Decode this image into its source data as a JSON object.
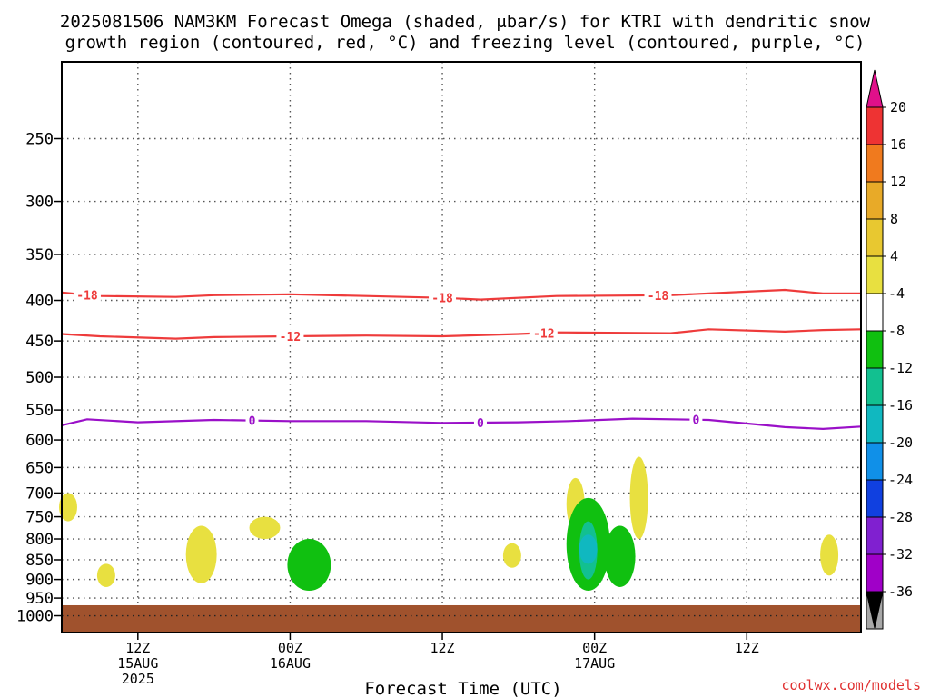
{
  "chart_data": {
    "type": "heatmap",
    "title_line1": "2025081506 NAM3KM Forecast Omega (shaded, μbar/s) for KTRI with dendritic snow",
    "title_line2": "growth region (contoured, red, °C) and freezing level (contoured, purple, °C)",
    "xlabel": "Forecast Time (UTC)",
    "ylabel": "",
    "y_scale": "log",
    "ylim": [
      1050,
      200
    ],
    "y_ticks": [
      250,
      300,
      350,
      400,
      450,
      500,
      550,
      600,
      650,
      700,
      750,
      800,
      850,
      900,
      950,
      1000
    ],
    "xlim": [
      "2025-08-15 06Z",
      "2025-08-17 21Z"
    ],
    "x_ticks": [
      {
        "time": "2025-08-15 12Z",
        "lines": [
          "12Z",
          "15AUG",
          "2025"
        ]
      },
      {
        "time": "2025-08-16 00Z",
        "lines": [
          "00Z",
          "16AUG"
        ]
      },
      {
        "time": "2025-08-16 12Z",
        "lines": [
          "12Z"
        ]
      },
      {
        "time": "2025-08-17 00Z",
        "lines": [
          "00Z",
          "17AUG"
        ]
      },
      {
        "time": "2025-08-17 12Z",
        "lines": [
          "12Z"
        ]
      }
    ],
    "grid": true,
    "colorbar": {
      "position": "right",
      "levels": [
        20,
        16,
        12,
        8,
        4,
        -4,
        -8,
        -12,
        -16,
        -20,
        -24,
        -28,
        -32,
        -36
      ],
      "colors": [
        "#ee3333",
        "#f07a1e",
        "#e8aa28",
        "#e8c830",
        "#e8e040",
        "#ffffff",
        "#10c010",
        "#12c090",
        "#10b8c0",
        "#1090e8",
        "#1040e0",
        "#8020d0",
        "#a000c8",
        "#a8a8a8"
      ],
      "top_arrow_color": "#e0108a",
      "bottom_arrow_color": "#000000"
    },
    "contours": [
      {
        "kind": "dendritic",
        "level": -18,
        "color": "#ee3b3b",
        "points": [
          [
            "2025-08-15 06Z",
            391
          ],
          [
            "2025-08-15 09Z",
            395
          ],
          [
            "2025-08-15 15Z",
            396
          ],
          [
            "2025-08-15 18Z",
            394
          ],
          [
            "2025-08-16 00Z",
            393
          ],
          [
            "2025-08-16 06Z",
            395
          ],
          [
            "2025-08-16 12Z",
            397
          ],
          [
            "2025-08-16 15Z",
            399
          ],
          [
            "2025-08-16 21Z",
            395
          ],
          [
            "2025-08-17 06Z",
            394
          ],
          [
            "2025-08-17 12Z",
            390
          ],
          [
            "2025-08-17 15Z",
            388
          ],
          [
            "2025-08-17 18Z",
            392
          ],
          [
            "2025-08-17 21Z",
            392
          ]
        ],
        "labels": [
          [
            "2025-08-15 08Z",
            "-18"
          ],
          [
            "2025-08-16 12Z",
            "-18"
          ],
          [
            "2025-08-17 05Z",
            "-18"
          ]
        ]
      },
      {
        "kind": "dendritic",
        "level": -12,
        "color": "#ee3b3b",
        "points": [
          [
            "2025-08-15 06Z",
            441
          ],
          [
            "2025-08-15 09Z",
            444
          ],
          [
            "2025-08-15 15Z",
            447
          ],
          [
            "2025-08-15 18Z",
            445
          ],
          [
            "2025-08-16 00Z",
            444
          ],
          [
            "2025-08-16 06Z",
            443
          ],
          [
            "2025-08-16 12Z",
            444
          ],
          [
            "2025-08-16 18Z",
            441
          ],
          [
            "2025-08-16 21Z",
            439
          ],
          [
            "2025-08-17 06Z",
            440
          ],
          [
            "2025-08-17 09Z",
            435
          ],
          [
            "2025-08-17 15Z",
            438
          ],
          [
            "2025-08-17 18Z",
            436
          ],
          [
            "2025-08-17 21Z",
            435
          ]
        ],
        "labels": [
          [
            "2025-08-16 00Z",
            "-12"
          ],
          [
            "2025-08-16 20Z",
            "-12"
          ]
        ]
      },
      {
        "kind": "freezing",
        "level": 0,
        "color": "#9a10c8",
        "points": [
          [
            "2025-08-15 06Z",
            575
          ],
          [
            "2025-08-15 08Z",
            565
          ],
          [
            "2025-08-15 12Z",
            570
          ],
          [
            "2025-08-15 18Z",
            566
          ],
          [
            "2025-08-16 00Z",
            568
          ],
          [
            "2025-08-16 06Z",
            568
          ],
          [
            "2025-08-16 12Z",
            571
          ],
          [
            "2025-08-16 18Z",
            570
          ],
          [
            "2025-08-16 22Z",
            568
          ],
          [
            "2025-08-17 03Z",
            564
          ],
          [
            "2025-08-17 09Z",
            566
          ],
          [
            "2025-08-17 15Z",
            578
          ],
          [
            "2025-08-17 18Z",
            581
          ],
          [
            "2025-08-17 21Z",
            577
          ]
        ],
        "labels": [
          [
            "2025-08-15 21Z",
            "0"
          ],
          [
            "2025-08-16 15Z",
            "0"
          ],
          [
            "2025-08-17 08Z",
            "0"
          ]
        ]
      }
    ],
    "omega_regions": [
      {
        "level": 4,
        "color": "#e8e040",
        "points": [
          [
            "2025-08-15 06Z",
            700
          ],
          [
            "2025-08-15 07Z",
            760
          ]
        ]
      },
      {
        "level": 4,
        "color": "#e8e040",
        "points": [
          [
            "2025-08-15 09Z",
            860
          ],
          [
            "2025-08-15 10Z",
            920
          ]
        ]
      },
      {
        "level": 4,
        "color": "#e8e040",
        "points": [
          [
            "2025-08-15 16Z",
            770
          ],
          [
            "2025-08-15 18Z",
            910
          ]
        ]
      },
      {
        "level": 4,
        "color": "#e8e040",
        "points": [
          [
            "2025-08-15 21Z",
            750
          ],
          [
            "2025-08-15 23Z",
            800
          ]
        ]
      },
      {
        "level": 4,
        "color": "#e8e040",
        "points": [
          [
            "2025-08-16 17Z",
            810
          ],
          [
            "2025-08-16 18Z",
            870
          ]
        ]
      },
      {
        "level": 4,
        "color": "#e8e040",
        "points": [
          [
            "2025-08-16 22Z",
            670
          ],
          [
            "2025-08-16 23Z",
            780
          ]
        ]
      },
      {
        "level": 4,
        "color": "#e8e040",
        "points": [
          [
            "2025-08-17 03Z",
            630
          ],
          [
            "2025-08-17 04Z",
            800
          ]
        ]
      },
      {
        "level": 4,
        "color": "#e8e040",
        "points": [
          [
            "2025-08-17 18Z",
            790
          ],
          [
            "2025-08-17 19Z",
            890
          ]
        ]
      },
      {
        "level": -4,
        "color": "#10c010",
        "points": [
          [
            "2025-08-16 00Z",
            800
          ],
          [
            "2025-08-16 03Z",
            930
          ]
        ]
      },
      {
        "level": -4,
        "color": "#10c010",
        "points": [
          [
            "2025-08-16 22Z",
            710
          ],
          [
            "2025-08-17 01Z",
            930
          ]
        ]
      },
      {
        "level": -4,
        "color": "#10c010",
        "points": [
          [
            "2025-08-17 01Z",
            770
          ],
          [
            "2025-08-17 03Z",
            920
          ]
        ]
      },
      {
        "level": -8,
        "color": "#12c090",
        "points": [
          [
            "2025-08-16 23Z",
            760
          ],
          [
            "2025-08-17 00Z",
            900
          ]
        ]
      },
      {
        "level": -12,
        "color": "#10b8c0",
        "points": [
          [
            "2025-08-16 23Z",
            790
          ],
          [
            "2025-08-17 00Z",
            860
          ]
        ]
      }
    ],
    "terrain": {
      "color": "#a0522d",
      "top_pressure": 970
    }
  },
  "site_label": "coolwx.com/models"
}
